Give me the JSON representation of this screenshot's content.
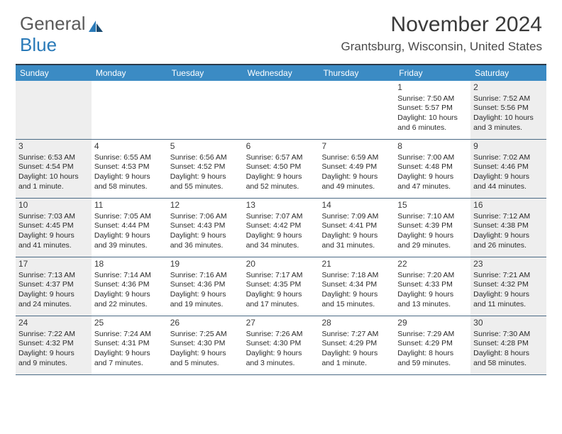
{
  "logo": {
    "part1": "General",
    "part2": "Blue"
  },
  "header": {
    "month_title": "November 2024",
    "location": "Grantsburg, Wisconsin, United States"
  },
  "calendar": {
    "header_bg": "#3b8bc4",
    "header_fg": "#ffffff",
    "shade_bg": "#eeeeee",
    "border_color": "#4a6a85",
    "weekdays": [
      "Sunday",
      "Monday",
      "Tuesday",
      "Wednesday",
      "Thursday",
      "Friday",
      "Saturday"
    ],
    "weeks": [
      [
        {
          "num": "",
          "sunrise": "",
          "sunset": "",
          "daylight": "",
          "shaded": true
        },
        {
          "num": "",
          "sunrise": "",
          "sunset": "",
          "daylight": "",
          "shaded": false
        },
        {
          "num": "",
          "sunrise": "",
          "sunset": "",
          "daylight": "",
          "shaded": false
        },
        {
          "num": "",
          "sunrise": "",
          "sunset": "",
          "daylight": "",
          "shaded": false
        },
        {
          "num": "",
          "sunrise": "",
          "sunset": "",
          "daylight": "",
          "shaded": false
        },
        {
          "num": "1",
          "sunrise": "Sunrise: 7:50 AM",
          "sunset": "Sunset: 5:57 PM",
          "daylight": "Daylight: 10 hours and 6 minutes.",
          "shaded": false
        },
        {
          "num": "2",
          "sunrise": "Sunrise: 7:52 AM",
          "sunset": "Sunset: 5:56 PM",
          "daylight": "Daylight: 10 hours and 3 minutes.",
          "shaded": true
        }
      ],
      [
        {
          "num": "3",
          "sunrise": "Sunrise: 6:53 AM",
          "sunset": "Sunset: 4:54 PM",
          "daylight": "Daylight: 10 hours and 1 minute.",
          "shaded": true
        },
        {
          "num": "4",
          "sunrise": "Sunrise: 6:55 AM",
          "sunset": "Sunset: 4:53 PM",
          "daylight": "Daylight: 9 hours and 58 minutes.",
          "shaded": false
        },
        {
          "num": "5",
          "sunrise": "Sunrise: 6:56 AM",
          "sunset": "Sunset: 4:52 PM",
          "daylight": "Daylight: 9 hours and 55 minutes.",
          "shaded": false
        },
        {
          "num": "6",
          "sunrise": "Sunrise: 6:57 AM",
          "sunset": "Sunset: 4:50 PM",
          "daylight": "Daylight: 9 hours and 52 minutes.",
          "shaded": false
        },
        {
          "num": "7",
          "sunrise": "Sunrise: 6:59 AM",
          "sunset": "Sunset: 4:49 PM",
          "daylight": "Daylight: 9 hours and 49 minutes.",
          "shaded": false
        },
        {
          "num": "8",
          "sunrise": "Sunrise: 7:00 AM",
          "sunset": "Sunset: 4:48 PM",
          "daylight": "Daylight: 9 hours and 47 minutes.",
          "shaded": false
        },
        {
          "num": "9",
          "sunrise": "Sunrise: 7:02 AM",
          "sunset": "Sunset: 4:46 PM",
          "daylight": "Daylight: 9 hours and 44 minutes.",
          "shaded": true
        }
      ],
      [
        {
          "num": "10",
          "sunrise": "Sunrise: 7:03 AM",
          "sunset": "Sunset: 4:45 PM",
          "daylight": "Daylight: 9 hours and 41 minutes.",
          "shaded": true
        },
        {
          "num": "11",
          "sunrise": "Sunrise: 7:05 AM",
          "sunset": "Sunset: 4:44 PM",
          "daylight": "Daylight: 9 hours and 39 minutes.",
          "shaded": false
        },
        {
          "num": "12",
          "sunrise": "Sunrise: 7:06 AM",
          "sunset": "Sunset: 4:43 PM",
          "daylight": "Daylight: 9 hours and 36 minutes.",
          "shaded": false
        },
        {
          "num": "13",
          "sunrise": "Sunrise: 7:07 AM",
          "sunset": "Sunset: 4:42 PM",
          "daylight": "Daylight: 9 hours and 34 minutes.",
          "shaded": false
        },
        {
          "num": "14",
          "sunrise": "Sunrise: 7:09 AM",
          "sunset": "Sunset: 4:41 PM",
          "daylight": "Daylight: 9 hours and 31 minutes.",
          "shaded": false
        },
        {
          "num": "15",
          "sunrise": "Sunrise: 7:10 AM",
          "sunset": "Sunset: 4:39 PM",
          "daylight": "Daylight: 9 hours and 29 minutes.",
          "shaded": false
        },
        {
          "num": "16",
          "sunrise": "Sunrise: 7:12 AM",
          "sunset": "Sunset: 4:38 PM",
          "daylight": "Daylight: 9 hours and 26 minutes.",
          "shaded": true
        }
      ],
      [
        {
          "num": "17",
          "sunrise": "Sunrise: 7:13 AM",
          "sunset": "Sunset: 4:37 PM",
          "daylight": "Daylight: 9 hours and 24 minutes.",
          "shaded": true
        },
        {
          "num": "18",
          "sunrise": "Sunrise: 7:14 AM",
          "sunset": "Sunset: 4:36 PM",
          "daylight": "Daylight: 9 hours and 22 minutes.",
          "shaded": false
        },
        {
          "num": "19",
          "sunrise": "Sunrise: 7:16 AM",
          "sunset": "Sunset: 4:36 PM",
          "daylight": "Daylight: 9 hours and 19 minutes.",
          "shaded": false
        },
        {
          "num": "20",
          "sunrise": "Sunrise: 7:17 AM",
          "sunset": "Sunset: 4:35 PM",
          "daylight": "Daylight: 9 hours and 17 minutes.",
          "shaded": false
        },
        {
          "num": "21",
          "sunrise": "Sunrise: 7:18 AM",
          "sunset": "Sunset: 4:34 PM",
          "daylight": "Daylight: 9 hours and 15 minutes.",
          "shaded": false
        },
        {
          "num": "22",
          "sunrise": "Sunrise: 7:20 AM",
          "sunset": "Sunset: 4:33 PM",
          "daylight": "Daylight: 9 hours and 13 minutes.",
          "shaded": false
        },
        {
          "num": "23",
          "sunrise": "Sunrise: 7:21 AM",
          "sunset": "Sunset: 4:32 PM",
          "daylight": "Daylight: 9 hours and 11 minutes.",
          "shaded": true
        }
      ],
      [
        {
          "num": "24",
          "sunrise": "Sunrise: 7:22 AM",
          "sunset": "Sunset: 4:32 PM",
          "daylight": "Daylight: 9 hours and 9 minutes.",
          "shaded": true
        },
        {
          "num": "25",
          "sunrise": "Sunrise: 7:24 AM",
          "sunset": "Sunset: 4:31 PM",
          "daylight": "Daylight: 9 hours and 7 minutes.",
          "shaded": false
        },
        {
          "num": "26",
          "sunrise": "Sunrise: 7:25 AM",
          "sunset": "Sunset: 4:30 PM",
          "daylight": "Daylight: 9 hours and 5 minutes.",
          "shaded": false
        },
        {
          "num": "27",
          "sunrise": "Sunrise: 7:26 AM",
          "sunset": "Sunset: 4:30 PM",
          "daylight": "Daylight: 9 hours and 3 minutes.",
          "shaded": false
        },
        {
          "num": "28",
          "sunrise": "Sunrise: 7:27 AM",
          "sunset": "Sunset: 4:29 PM",
          "daylight": "Daylight: 9 hours and 1 minute.",
          "shaded": false
        },
        {
          "num": "29",
          "sunrise": "Sunrise: 7:29 AM",
          "sunset": "Sunset: 4:29 PM",
          "daylight": "Daylight: 8 hours and 59 minutes.",
          "shaded": false
        },
        {
          "num": "30",
          "sunrise": "Sunrise: 7:30 AM",
          "sunset": "Sunset: 4:28 PM",
          "daylight": "Daylight: 8 hours and 58 minutes.",
          "shaded": true
        }
      ]
    ]
  }
}
